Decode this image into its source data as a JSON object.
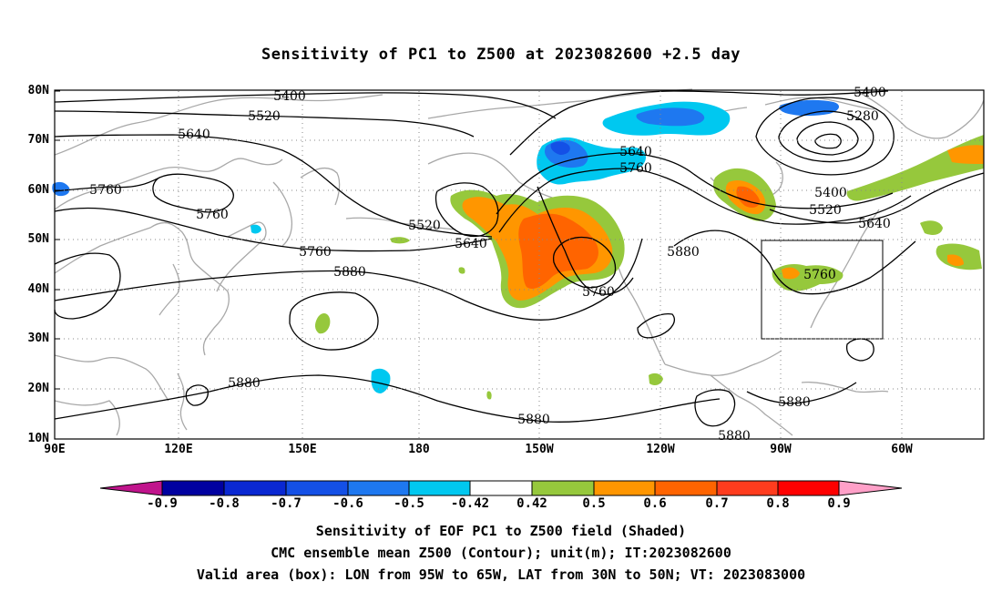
{
  "title": "Sensitivity of PC1 to Z500 at 2023082600 +2.5 day",
  "lat_labels": [
    "80N",
    "70N",
    "60N",
    "50N",
    "40N",
    "30N",
    "20N",
    "10N"
  ],
  "lon_labels": [
    "90E",
    "120E",
    "150E",
    "180",
    "150W",
    "120W",
    "90W",
    "60W"
  ],
  "contour_labels": [
    "5400",
    "5520",
    "5640",
    "5760",
    "5760",
    "5520",
    "5640",
    "5760",
    "5880",
    "5640",
    "5760",
    "5400",
    "5280",
    "5400",
    "5520",
    "5640",
    "5880",
    "5760",
    "5880",
    "5880",
    "5880",
    "5880"
  ],
  "colorbar": {
    "labels": [
      "-0.9",
      "-0.8",
      "-0.7",
      "-0.6",
      "-0.5",
      "-0.42",
      "0.42",
      "0.5",
      "0.6",
      "0.7",
      "0.8",
      "0.9"
    ],
    "colors": [
      "#c0148c",
      "#0000a0",
      "#0a28d2",
      "#1450e6",
      "#1e78f0",
      "#00c8f0",
      "#ffffff",
      "#96c83c",
      "#ff9600",
      "#ff6400",
      "#ff3c1e",
      "#ff0000",
      "#ffa0c8"
    ]
  },
  "footer": {
    "line1": "Sensitivity of EOF PC1 to Z500 field (Shaded)",
    "line2": "CMC ensemble mean Z500 (Contour); unit(m); IT:2023082600",
    "line3": "Valid area (box): LON from 95W to 65W, LAT from 30N to 50N; VT: 2023083000"
  }
}
